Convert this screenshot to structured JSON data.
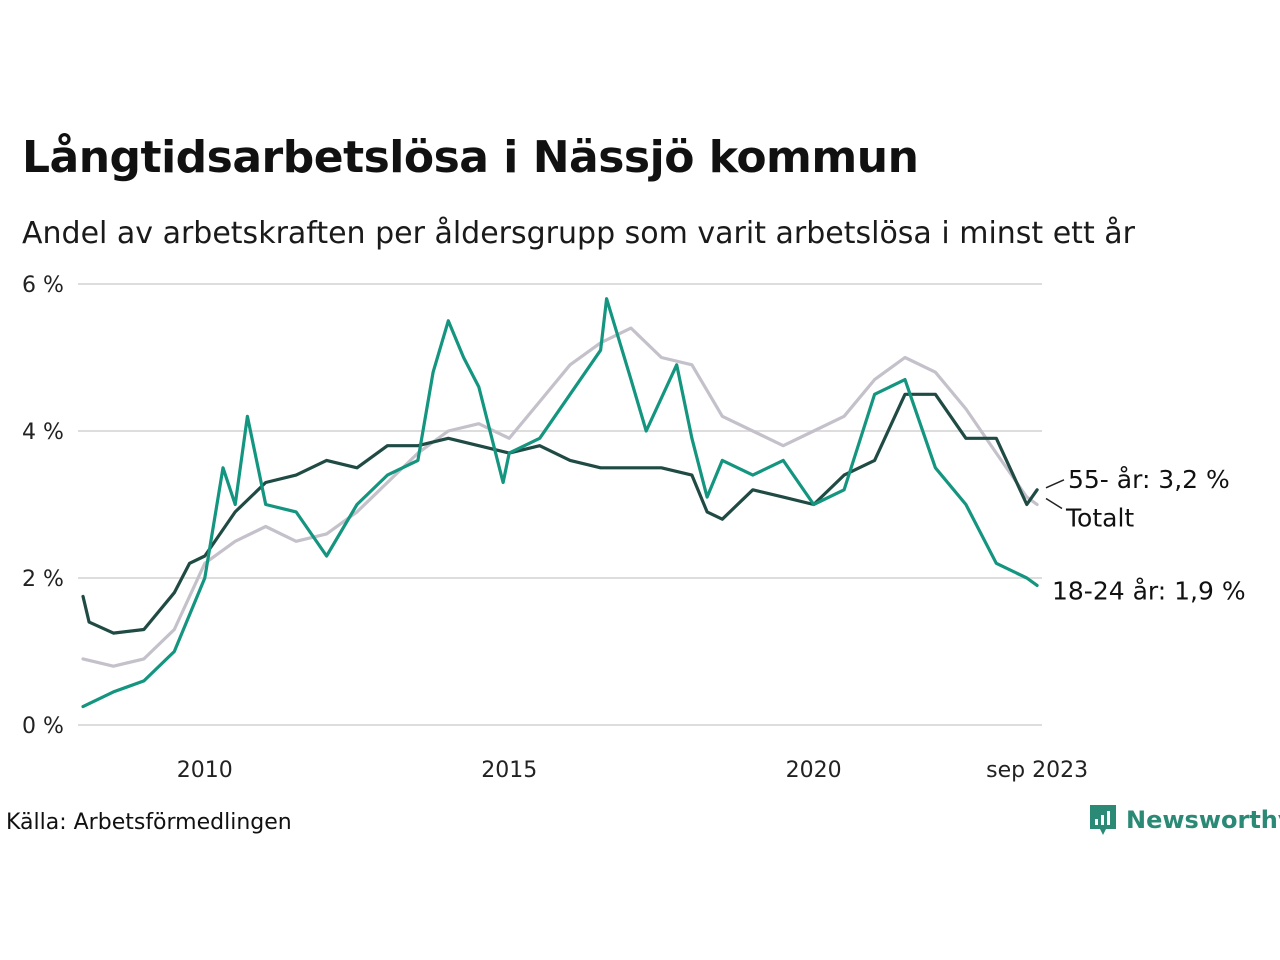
{
  "title": "Långtidsarbetslösa i Nässjö kommun",
  "subtitle": "Andel av arbetskraften per åldersgrupp som varit arbetslösa i minst ett år",
  "source": "Källa: Arbetsförmedlingen",
  "brand": "Newsworthy",
  "colors": {
    "total": "#c4c1cb",
    "age_55": "#1f4b44",
    "age_18_24": "#14957f",
    "grid": "#dddddd",
    "brand": "#2a8a76"
  },
  "chart_data": {
    "type": "line",
    "title": "Långtidsarbetslösa i Nässjö kommun",
    "xlabel": "",
    "ylabel": "",
    "x_range": [
      2008.0,
      2023.75
    ],
    "ylim": [
      0,
      6
    ],
    "yticks": [
      0,
      2,
      4,
      6
    ],
    "ytick_labels": [
      "0 %",
      "2 %",
      "4 %",
      "6 %"
    ],
    "xticks": [
      2010,
      2015,
      2020,
      2023.67
    ],
    "xtick_labels": [
      "2010",
      "2015",
      "2020",
      "sep 2023"
    ],
    "grid": true,
    "series": [
      {
        "key": "total",
        "name": "Totalt",
        "end_label": "Totalt",
        "x": [
          2008.0,
          2008.5,
          2009.0,
          2009.5,
          2010.0,
          2010.5,
          2011.0,
          2011.5,
          2012.0,
          2012.5,
          2013.0,
          2013.5,
          2014.0,
          2014.5,
          2015.0,
          2015.5,
          2016.0,
          2016.5,
          2017.0,
          2017.5,
          2018.0,
          2018.5,
          2019.0,
          2019.5,
          2020.0,
          2020.5,
          2021.0,
          2021.5,
          2022.0,
          2022.5,
          2023.0,
          2023.5,
          2023.67
        ],
        "values": [
          0.9,
          0.8,
          0.9,
          1.3,
          2.2,
          2.5,
          2.7,
          2.5,
          2.6,
          2.9,
          3.3,
          3.7,
          4.0,
          4.1,
          3.9,
          4.4,
          4.9,
          5.2,
          5.4,
          5.0,
          4.9,
          4.2,
          4.0,
          3.8,
          4.0,
          4.2,
          4.7,
          5.0,
          4.8,
          4.3,
          3.7,
          3.1,
          3.0
        ]
      },
      {
        "key": "age_55",
        "name": "55- år",
        "end_label": "55- år: 3,2 %",
        "x": [
          2008.0,
          2008.1,
          2008.5,
          2009.0,
          2009.5,
          2009.75,
          2010.0,
          2010.5,
          2011.0,
          2011.5,
          2012.0,
          2012.5,
          2013.0,
          2013.5,
          2014.0,
          2014.5,
          2015.0,
          2015.5,
          2016.0,
          2016.5,
          2017.0,
          2017.5,
          2018.0,
          2018.25,
          2018.5,
          2019.0,
          2019.5,
          2020.0,
          2020.5,
          2021.0,
          2021.5,
          2022.0,
          2022.5,
          2023.0,
          2023.5,
          2023.67
        ],
        "values": [
          1.75,
          1.4,
          1.25,
          1.3,
          1.8,
          2.2,
          2.3,
          2.9,
          3.3,
          3.4,
          3.6,
          3.5,
          3.8,
          3.8,
          3.9,
          3.8,
          3.7,
          3.8,
          3.6,
          3.5,
          3.5,
          3.5,
          3.4,
          2.9,
          2.8,
          3.2,
          3.1,
          3.0,
          3.4,
          3.6,
          4.5,
          4.5,
          3.9,
          3.9,
          3.0,
          3.2
        ]
      },
      {
        "key": "age_18_24",
        "name": "18-24 år",
        "end_label": "18-24 år: 1,9 %",
        "x": [
          2008.0,
          2008.5,
          2009.0,
          2009.5,
          2010.0,
          2010.3,
          2010.5,
          2010.7,
          2011.0,
          2011.5,
          2012.0,
          2012.5,
          2013.0,
          2013.5,
          2013.75,
          2014.0,
          2014.25,
          2014.5,
          2014.9,
          2015.0,
          2015.5,
          2016.0,
          2016.5,
          2016.6,
          2017.0,
          2017.25,
          2017.75,
          2018.0,
          2018.25,
          2018.5,
          2019.0,
          2019.5,
          2020.0,
          2020.5,
          2021.0,
          2021.5,
          2022.0,
          2022.5,
          2023.0,
          2023.5,
          2023.67
        ],
        "values": [
          0.25,
          0.45,
          0.6,
          1.0,
          2.0,
          3.5,
          3.0,
          4.2,
          3.0,
          2.9,
          2.3,
          3.0,
          3.4,
          3.6,
          4.8,
          5.5,
          5.0,
          4.6,
          3.3,
          3.7,
          3.9,
          4.5,
          5.1,
          5.8,
          4.7,
          4.0,
          4.9,
          3.9,
          3.1,
          3.6,
          3.4,
          3.6,
          3.0,
          3.2,
          4.5,
          4.7,
          3.5,
          3.0,
          2.2,
          2.0,
          1.9
        ]
      }
    ]
  }
}
